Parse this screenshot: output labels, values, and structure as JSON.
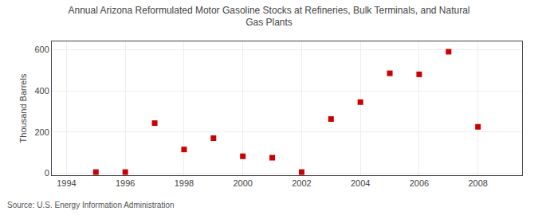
{
  "chart_data": {
    "type": "scatter",
    "title": "Annual Arizona Reformulated Motor Gasoline Stocks at Refineries, Bulk Terminals, and Natural\nGas Plants",
    "ylabel": "Thousand Barrels",
    "source": "Source: U.S. Energy Information Administration",
    "x": [
      1995,
      1996,
      1997,
      1998,
      1999,
      2000,
      2001,
      2002,
      2003,
      2004,
      2005,
      2006,
      2007,
      2008
    ],
    "values": [
      5,
      5,
      243,
      115,
      170,
      82,
      75,
      5,
      263,
      345,
      485,
      480,
      590,
      225
    ],
    "color": "#cc0000",
    "marker": "square",
    "xlim": [
      1993.5,
      2009.5
    ],
    "xticks": [
      1994,
      1996,
      1998,
      2000,
      2002,
      2004,
      2006,
      2008
    ],
    "ylim": [
      -10,
      640
    ],
    "yticks": [
      0,
      200,
      400,
      600
    ],
    "grid": true
  }
}
